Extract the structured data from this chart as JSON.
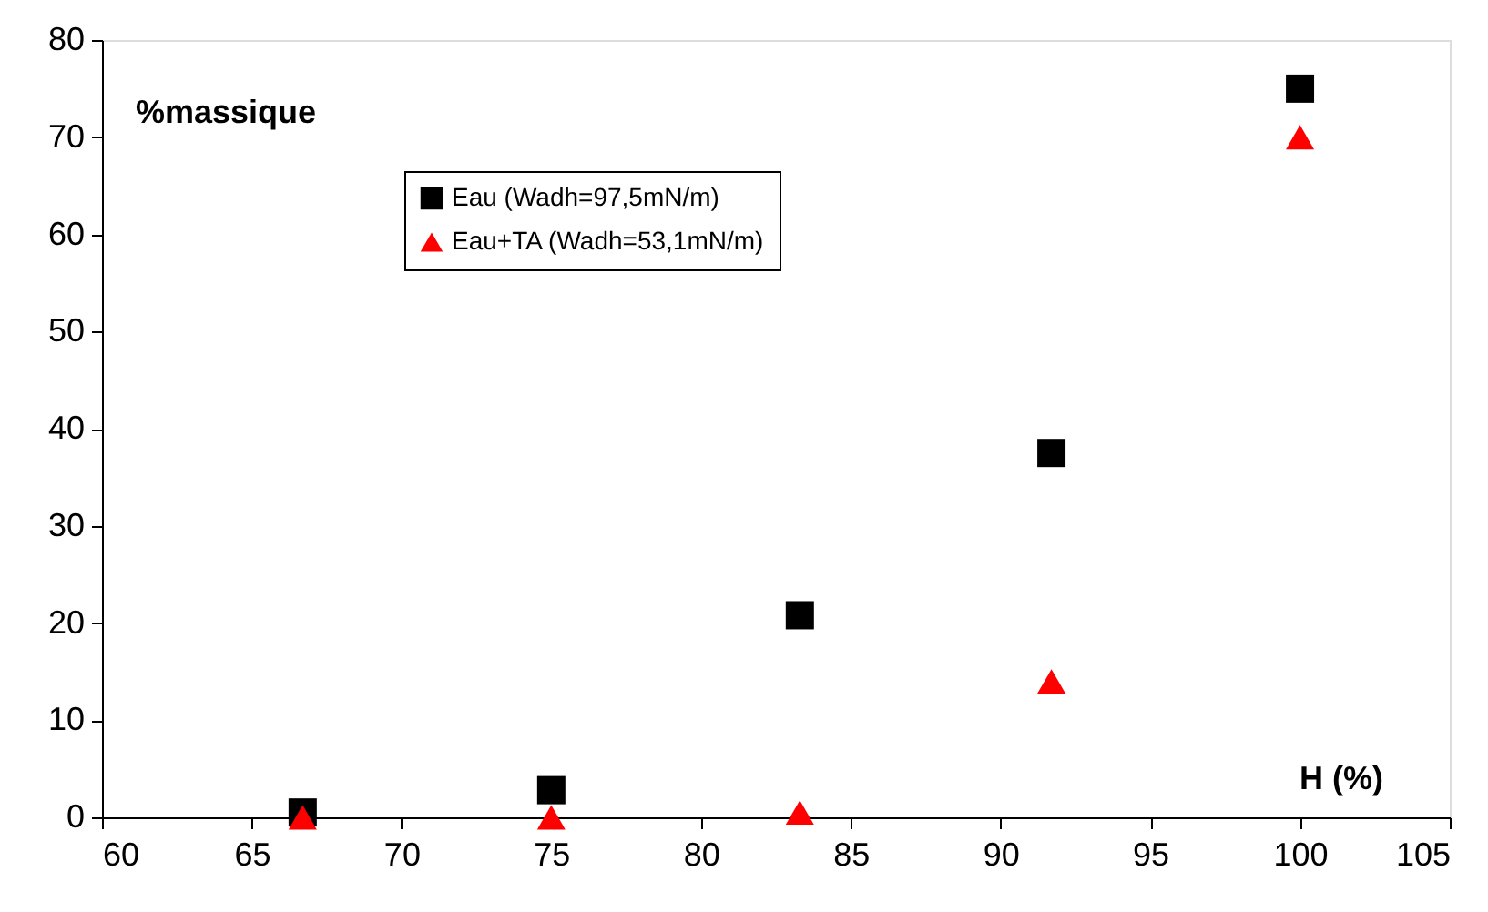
{
  "chart_data": {
    "type": "scatter",
    "xlabel": "H (%)",
    "ylabel": "%massique",
    "xlim": [
      60,
      105
    ],
    "xticks": [
      60,
      65,
      70,
      75,
      80,
      85,
      90,
      95,
      100,
      105
    ],
    "ylim": [
      0,
      80
    ],
    "yticks": [
      0,
      10,
      20,
      30,
      40,
      50,
      60,
      70,
      80
    ],
    "grid": false,
    "legend": "top left",
    "series": [
      {
        "name": "Eau (Wadh=97,5mN/m)",
        "color": "#000000",
        "marker": "square",
        "x": [
          66.7,
          75,
          83.3,
          91.7,
          100
        ],
        "values": [
          0.5,
          2.8,
          20.8,
          37.5,
          75
        ]
      },
      {
        "name": "Eau+TA (Wadh=53,1mN/m)",
        "color": "#ff0000",
        "marker": "triangle",
        "x": [
          66.7,
          75,
          83.3,
          91.7,
          100
        ],
        "values": [
          0,
          0,
          0.5,
          14,
          70
        ]
      }
    ]
  }
}
